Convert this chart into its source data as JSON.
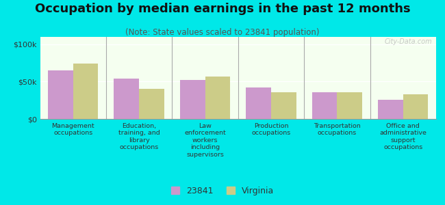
{
  "title": "Occupation by median earnings in the past 12 months",
  "subtitle": "(Note: State values scaled to 23841 population)",
  "categories": [
    "Management\noccupations",
    "Education,\ntraining, and\nlibrary\noccupations",
    "Law\nenforcement\nworkers\nincluding\nsupervisors",
    "Production\noccupations",
    "Transportation\noccupations",
    "Office and\nadministrative\nsupport\noccupations"
  ],
  "values_23841": [
    65000,
    54000,
    52000,
    42000,
    36000,
    26000
  ],
  "values_virginia": [
    74000,
    40000,
    57000,
    36000,
    36000,
    33000
  ],
  "color_23841": "#cc99cc",
  "color_virginia": "#cccc88",
  "bar_width": 0.38,
  "ylim": [
    0,
    110000
  ],
  "yticks": [
    0,
    50000,
    100000
  ],
  "ytick_labels": [
    "$0",
    "$50k",
    "$100k"
  ],
  "plot_bg_top": "#e8f5e0",
  "plot_bg_bottom": "#f5fff0",
  "outer_bg": "#00e8e8",
  "legend_label_1": "23841",
  "legend_label_2": "Virginia",
  "watermark": "City-Data.com",
  "title_fontsize": 13,
  "subtitle_fontsize": 8.5,
  "tick_fontsize": 8,
  "xtick_fontsize": 6.8,
  "legend_fontsize": 9
}
